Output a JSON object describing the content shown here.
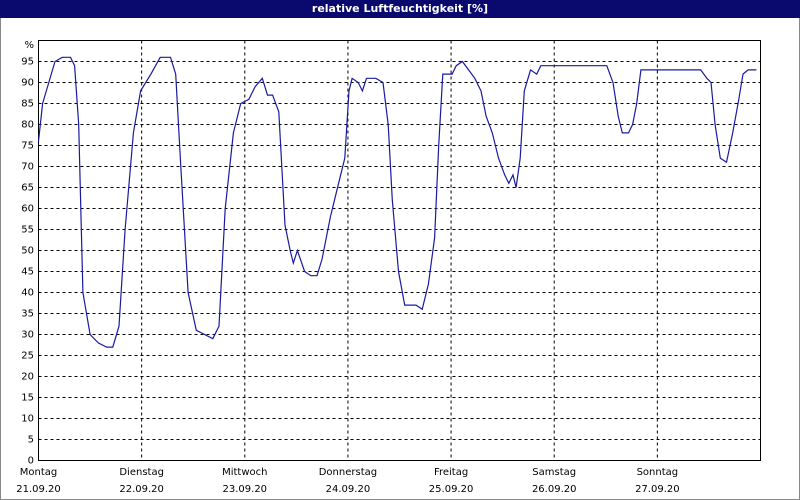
{
  "chart_data": {
    "type": "line",
    "title": "relative Luftfeuchtigkeit [%]",
    "y_unit": "%",
    "xlim": [
      0,
      7
    ],
    "xticks": [
      {
        "value": 0,
        "label": "Montag",
        "date": "21.09.20"
      },
      {
        "value": 1,
        "label": "Dienstag",
        "date": "22.09.20"
      },
      {
        "value": 2,
        "label": "Mittwoch",
        "date": "23.09.20"
      },
      {
        "value": 3,
        "label": "Donnerstag",
        "date": "24.09.20"
      },
      {
        "value": 4,
        "label": "Freitag",
        "date": "25.09.20"
      },
      {
        "value": 5,
        "label": "Samstag",
        "date": "26.09.20"
      },
      {
        "value": 6,
        "label": "Sonntag",
        "date": "27.09.20"
      }
    ],
    "ylim": [
      0,
      100
    ],
    "yticks": [
      0,
      5,
      10,
      15,
      20,
      25,
      30,
      35,
      40,
      45,
      50,
      55,
      60,
      65,
      70,
      75,
      80,
      85,
      90,
      95
    ],
    "grid": true,
    "series": [
      {
        "color": "#1a1aa0",
        "x": [
          0,
          0.04,
          0.1,
          0.16,
          0.23,
          0.31,
          0.35,
          0.39,
          0.43,
          0.5,
          0.58,
          0.66,
          0.72,
          0.78,
          0.84,
          0.92,
          0.99,
          1.09,
          1.18,
          1.28,
          1.33,
          1.38,
          1.45,
          1.53,
          1.61,
          1.69,
          1.75,
          1.81,
          1.89,
          1.96,
          2.04,
          2.1,
          2.17,
          2.22,
          2.27,
          2.33,
          2.39,
          2.44,
          2.47,
          2.51,
          2.58,
          2.64,
          2.7,
          2.75,
          2.83,
          2.91,
          2.97,
          3.01,
          3.04,
          3.1,
          3.14,
          3.18,
          3.27,
          3.34,
          3.39,
          3.43,
          3.49,
          3.55,
          3.61,
          3.66,
          3.72,
          3.78,
          3.84,
          3.88,
          3.92,
          3.98,
          4.01,
          4.05,
          4.11,
          4.17,
          4.23,
          4.29,
          4.34,
          4.4,
          4.46,
          4.52,
          4.56,
          4.6,
          4.63,
          4.67,
          4.71,
          4.77,
          4.83,
          4.87,
          4.94,
          5.16,
          5.35,
          5.51,
          5.57,
          5.62,
          5.66,
          5.72,
          5.76,
          5.8,
          5.84,
          6.03,
          6.22,
          6.42,
          6.48,
          6.52,
          6.56,
          6.61,
          6.67,
          6.73,
          6.79,
          6.83,
          6.88,
          6.96
        ],
        "values": [
          76,
          85,
          90,
          95,
          96,
          96,
          94,
          80,
          40,
          30,
          28,
          27,
          27,
          32,
          55,
          78,
          88,
          92,
          96,
          96,
          92,
          70,
          40,
          31,
          30,
          29,
          32,
          60,
          78,
          85,
          86,
          89,
          91,
          87,
          87,
          83,
          56,
          50,
          47,
          50,
          45,
          44,
          44,
          48,
          58,
          66,
          72,
          88,
          91,
          90,
          88,
          91,
          91,
          90,
          80,
          62,
          45,
          37,
          37,
          37,
          36,
          42,
          53,
          75,
          92,
          92,
          92,
          94,
          95,
          93,
          91,
          88,
          82,
          78,
          72,
          68,
          66,
          68,
          65,
          72,
          88,
          93,
          92,
          94,
          94,
          94,
          94,
          94,
          90,
          82,
          78,
          78,
          80,
          85,
          93,
          93,
          93,
          93,
          91,
          90,
          80,
          72,
          71,
          78,
          86,
          92,
          93,
          93
        ]
      }
    ]
  }
}
